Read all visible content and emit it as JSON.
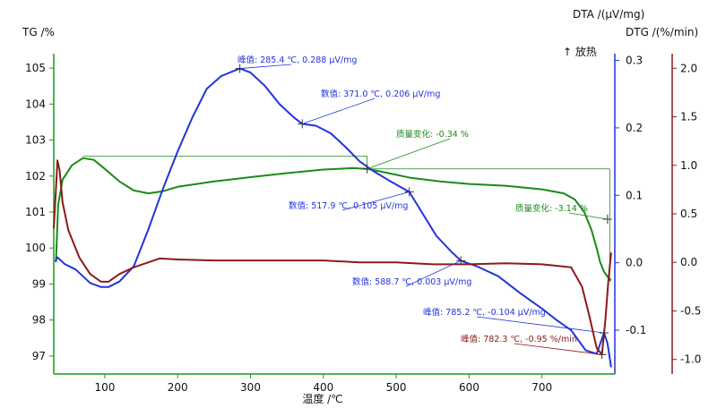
{
  "chart_data": {
    "type": "line",
    "x_axis": {
      "title": "温度 /℃",
      "range": [
        30,
        800
      ],
      "ticks": [
        100,
        200,
        300,
        400,
        500,
        600,
        700
      ],
      "tick_labels": [
        "100",
        "200",
        "300",
        "400",
        "500",
        "600",
        "700"
      ]
    },
    "y_axes": {
      "tg": {
        "title": "TG /%",
        "range": [
          96.5,
          105.4
        ],
        "ticks": [
          97,
          98,
          99,
          100,
          101,
          102,
          103,
          104,
          105
        ],
        "tick_labels": [
          "97",
          "98",
          "99",
          "100",
          "101",
          "102",
          "103",
          "104",
          "105"
        ],
        "color": "#1a9a1a"
      },
      "dta": {
        "title": "DTA /(μV/mg)",
        "range": [
          -0.165,
          0.31
        ],
        "ticks": [
          -0.1,
          0.0,
          0.1,
          0.2,
          0.3
        ],
        "tick_labels": [
          "-0.1",
          "0.0",
          "0.1",
          "0.2",
          "0.3"
        ],
        "color": "#2233dd"
      },
      "dtg": {
        "title": "DTG /(%/min)",
        "range": [
          -1.15,
          2.15
        ],
        "ticks": [
          -1.0,
          -0.5,
          0.0,
          0.5,
          1.0,
          1.5,
          2.0
        ],
        "tick_labels": [
          "-1.0",
          "-0.5",
          "0.0",
          "0.5",
          "1.0",
          "1.5",
          "2.0"
        ],
        "color": "#8b1a1a"
      }
    },
    "exo_label": "↑ 放热",
    "series": [
      {
        "key": "tg",
        "color": "#1a8a1a",
        "points": [
          [
            33,
            99.6
          ],
          [
            36,
            101.2
          ],
          [
            42,
            101.9
          ],
          [
            55,
            102.3
          ],
          [
            70,
            102.5
          ],
          [
            85,
            102.45
          ],
          [
            100,
            102.2
          ],
          [
            120,
            101.85
          ],
          [
            140,
            101.6
          ],
          [
            160,
            101.52
          ],
          [
            180,
            101.58
          ],
          [
            200,
            101.7
          ],
          [
            250,
            101.85
          ],
          [
            300,
            101.97
          ],
          [
            350,
            102.08
          ],
          [
            400,
            102.18
          ],
          [
            440,
            102.22
          ],
          [
            460,
            102.2
          ],
          [
            480,
            102.12
          ],
          [
            520,
            101.95
          ],
          [
            560,
            101.85
          ],
          [
            600,
            101.78
          ],
          [
            650,
            101.73
          ],
          [
            700,
            101.63
          ],
          [
            730,
            101.52
          ],
          [
            745,
            101.35
          ],
          [
            758,
            101.0
          ],
          [
            768,
            100.5
          ],
          [
            775,
            100.0
          ],
          [
            780,
            99.6
          ],
          [
            785,
            99.35
          ],
          [
            790,
            99.2
          ],
          [
            795,
            99.1
          ]
        ]
      },
      {
        "key": "dta",
        "color": "#2233dd",
        "points": [
          [
            32,
            0.002
          ],
          [
            35,
            0.008
          ],
          [
            45,
            -0.002
          ],
          [
            60,
            -0.01
          ],
          [
            80,
            -0.03
          ],
          [
            95,
            -0.036
          ],
          [
            105,
            -0.036
          ],
          [
            120,
            -0.028
          ],
          [
            140,
            -0.005
          ],
          [
            160,
            0.05
          ],
          [
            180,
            0.11
          ],
          [
            200,
            0.165
          ],
          [
            220,
            0.215
          ],
          [
            240,
            0.258
          ],
          [
            260,
            0.277
          ],
          [
            285.4,
            0.288
          ],
          [
            300,
            0.282
          ],
          [
            320,
            0.262
          ],
          [
            340,
            0.235
          ],
          [
            360,
            0.215
          ],
          [
            371.0,
            0.206
          ],
          [
            390,
            0.203
          ],
          [
            410,
            0.192
          ],
          [
            430,
            0.172
          ],
          [
            450,
            0.15
          ],
          [
            470,
            0.135
          ],
          [
            490,
            0.122
          ],
          [
            517.9,
            0.105
          ],
          [
            535,
            0.075
          ],
          [
            555,
            0.04
          ],
          [
            575,
            0.017
          ],
          [
            588.7,
            0.003
          ],
          [
            610,
            -0.005
          ],
          [
            640,
            -0.02
          ],
          [
            670,
            -0.045
          ],
          [
            700,
            -0.068
          ],
          [
            720,
            -0.085
          ],
          [
            740,
            -0.1
          ],
          [
            760,
            -0.13
          ],
          [
            775,
            -0.135
          ],
          [
            785.2,
            -0.104
          ],
          [
            790,
            -0.12
          ],
          [
            795,
            -0.155
          ]
        ]
      },
      {
        "key": "dtg",
        "color": "#8b1a1a",
        "points": [
          [
            30,
            0.35
          ],
          [
            33,
            0.75
          ],
          [
            35,
            1.05
          ],
          [
            38,
            0.95
          ],
          [
            42,
            0.62
          ],
          [
            50,
            0.33
          ],
          [
            65,
            0.05
          ],
          [
            80,
            -0.12
          ],
          [
            95,
            -0.2
          ],
          [
            105,
            -0.2
          ],
          [
            120,
            -0.12
          ],
          [
            140,
            -0.05
          ],
          [
            160,
            0.0
          ],
          [
            175,
            0.04
          ],
          [
            200,
            0.03
          ],
          [
            250,
            0.02
          ],
          [
            300,
            0.02
          ],
          [
            350,
            0.02
          ],
          [
            400,
            0.02
          ],
          [
            450,
            0.0
          ],
          [
            500,
            0.0
          ],
          [
            550,
            -0.02
          ],
          [
            600,
            -0.02
          ],
          [
            650,
            -0.01
          ],
          [
            700,
            -0.02
          ],
          [
            740,
            -0.05
          ],
          [
            755,
            -0.25
          ],
          [
            765,
            -0.55
          ],
          [
            775,
            -0.88
          ],
          [
            782.3,
            -0.95
          ],
          [
            787,
            -0.6
          ],
          [
            791,
            -0.2
          ],
          [
            795,
            0.1
          ]
        ]
      }
    ],
    "annotations": [
      {
        "key": "dta",
        "color": "#2233dd",
        "x": 285.4,
        "y": 0.288,
        "label": "峰值: 285.4 ℃, 0.288 μV/mg"
      },
      {
        "key": "dta",
        "color": "#2233dd",
        "x": 371.0,
        "y": 0.206,
        "label": "数值: 371.0 ℃, 0.206 μV/mg"
      },
      {
        "key": "dta",
        "color": "#2233dd",
        "x": 517.9,
        "y": 0.105,
        "label": "数值: 517.9 ℃, 0.105 μV/mg"
      },
      {
        "key": "dta",
        "color": "#2233dd",
        "x": 588.7,
        "y": 0.003,
        "label": "数值: 588.7 ℃, 0.003 μV/mg"
      },
      {
        "key": "dta",
        "color": "#2233dd",
        "x": 785.2,
        "y": -0.104,
        "label": "峰值: 785.2 ℃, -0.104 μV/mg"
      },
      {
        "key": "dtg",
        "color": "#8b1a1a",
        "x": 782.3,
        "y": -0.95,
        "label": "峰值: 782.3 ℃, -0.95 %/min"
      },
      {
        "key": "tg",
        "color": "#1a8a1a",
        "x": 460,
        "y": 102.2,
        "label": "质量变化: -0.34 %"
      },
      {
        "key": "tg",
        "color": "#1a8a1a",
        "x": 790,
        "y": 100.8,
        "label": "质量变化: -3.14 %"
      }
    ],
    "mass_change_steps": [
      {
        "from_x": 70,
        "to_x": 460,
        "from_y": 102.55,
        "to_y": 102.2
      },
      {
        "from_x": 460,
        "to_x": 793,
        "from_y": 102.2,
        "to_y": 99.06
      }
    ]
  }
}
